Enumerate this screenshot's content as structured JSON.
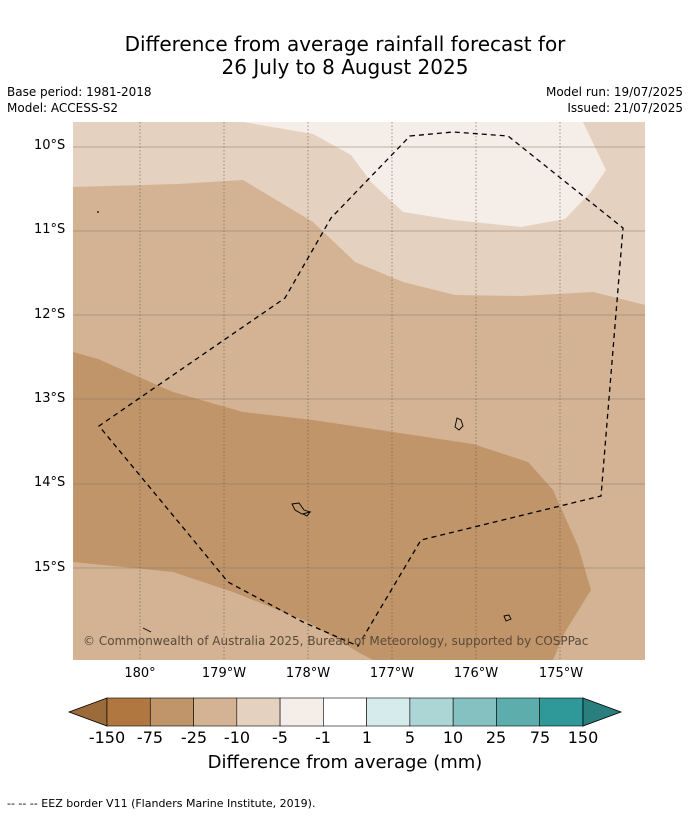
{
  "title_line1": "Difference from average rainfall forecast for",
  "title_line2": "26 July to 8 August 2025",
  "meta": {
    "base_period": "Base period: 1981-2018",
    "model": "Model: ACCESS-S2",
    "model_run": "Model run: 19/07/2025",
    "issued": "Issued: 21/07/2025"
  },
  "lat_labels": [
    "10°S",
    "11°S",
    "12°S",
    "13°S",
    "14°S",
    "15°S"
  ],
  "lon_labels": [
    "180°",
    "179°W",
    "178°W",
    "177°W",
    "176°W",
    "175°W"
  ],
  "copyright": "© Commonwealth of Australia 2025, Bureau of Meteorology, supported by COSPPac",
  "legend": {
    "title": "Difference from average (mm)",
    "ticks": [
      "-150",
      "-75",
      "-25",
      "-10",
      "-5",
      "-1",
      "1",
      "5",
      "10",
      "25",
      "75",
      "150"
    ],
    "colors": [
      "#9c6b3a",
      "#b07840",
      "#c0956a",
      "#d3b393",
      "#e4d1bf",
      "#f5ede7",
      "#ffffff",
      "#d6ecec",
      "#acd6d6",
      "#86c1c1",
      "#5dadad",
      "#2f9898",
      "#2a7e7e"
    ]
  },
  "footnote": "-- -- -- EEZ border V11 (Flanders Marine Institute, 2019)."
}
